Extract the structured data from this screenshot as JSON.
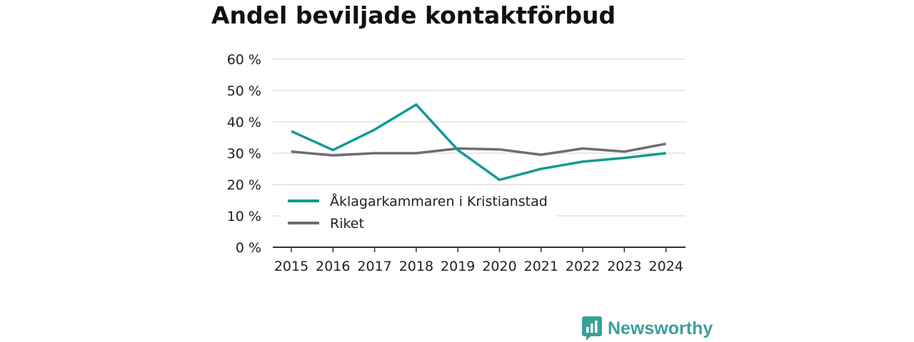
{
  "colors": {
    "series_primary": "#139a94",
    "series_secondary": "#6e6d75",
    "grid": "#d9d9d9",
    "axis": "#333333",
    "brand": "#3aa198"
  },
  "brand": {
    "name": "Newsworthy",
    "icon": "bar-chart-speech-bubble-icon"
  },
  "chart_data": {
    "type": "line",
    "title": "Andel beviljade kontaktförbud",
    "xlabel": "",
    "ylabel": "",
    "x": [
      "2015",
      "2016",
      "2017",
      "2018",
      "2019",
      "2020",
      "2021",
      "2022",
      "2023",
      "2024"
    ],
    "y_ticks": [
      0,
      10,
      20,
      30,
      40,
      50,
      60
    ],
    "y_tick_labels": [
      "0 %",
      "10 %",
      "20 %",
      "30 %",
      "40 %",
      "50 %",
      "60 %"
    ],
    "ylim": [
      0,
      60
    ],
    "y_unit": "%",
    "grid": true,
    "legend_position": "bottom-left",
    "series": [
      {
        "name": "Åklagarkammaren i Kristianstad",
        "color": "#139a94",
        "values": [
          37,
          31,
          37.5,
          45.5,
          31,
          21.5,
          25,
          27.3,
          28.5,
          30
        ]
      },
      {
        "name": "Riket",
        "color": "#6e6d75",
        "values": [
          30.5,
          29.3,
          30,
          30,
          31.5,
          31.2,
          29.5,
          31.5,
          30.5,
          33
        ]
      }
    ]
  }
}
